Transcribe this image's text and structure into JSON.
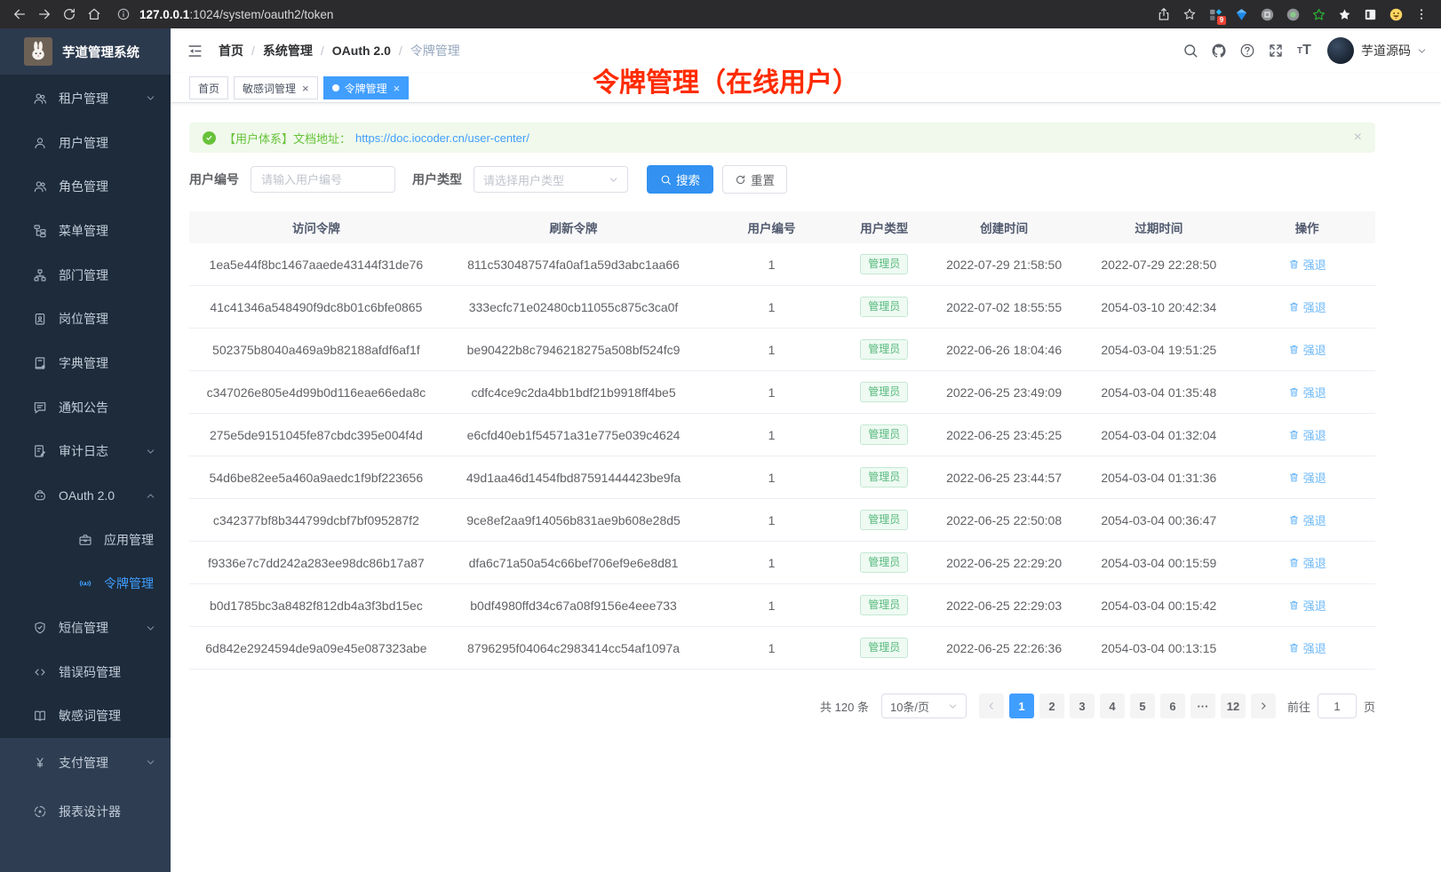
{
  "colors": {
    "accent": "#409eff",
    "success": "#67c23a",
    "annotation_red": "#ff2b00",
    "sidebar_bg": "#1d2b3a"
  },
  "browser": {
    "url_host": "127.0.0.1",
    "url_path": ":1024/system/oauth2/token",
    "extension_badge": "9"
  },
  "sidebar": {
    "app_title": "芋道管理系统",
    "items": [
      {
        "name": "tenant-management",
        "icon": "users-icon",
        "label": "租户管理",
        "chevron": "down"
      },
      {
        "name": "user-management",
        "icon": "user-icon",
        "label": "用户管理"
      },
      {
        "name": "role-management",
        "icon": "role-icon",
        "label": "角色管理"
      },
      {
        "name": "menu-management",
        "icon": "menu-tree-icon",
        "label": "菜单管理"
      },
      {
        "name": "dept-management",
        "icon": "org-icon",
        "label": "部门管理"
      },
      {
        "name": "post-management",
        "icon": "post-icon",
        "label": "岗位管理"
      },
      {
        "name": "dict-management",
        "icon": "dict-icon",
        "label": "字典管理"
      },
      {
        "name": "notice-management",
        "icon": "notice-icon",
        "label": "通知公告"
      },
      {
        "name": "audit-log",
        "icon": "audit-icon",
        "label": "审计日志",
        "chevron": "down"
      },
      {
        "name": "oauth2",
        "icon": "robot-icon",
        "label": "OAuth 2.0",
        "chevron": "up"
      },
      {
        "name": "oauth2-application",
        "icon": "briefcase-icon",
        "label": "应用管理",
        "sub": true
      },
      {
        "name": "oauth2-token",
        "icon": "token-icon",
        "label": "令牌管理",
        "sub": true,
        "active": true
      },
      {
        "name": "sms-management",
        "icon": "shield-icon",
        "label": "短信管理",
        "chevron": "down"
      },
      {
        "name": "error-code-management",
        "icon": "code-icon",
        "label": "错误码管理"
      },
      {
        "name": "sensitive-word-management",
        "icon": "book-icon",
        "label": "敏感词管理"
      },
      {
        "name": "pay-management",
        "icon": "yen-icon",
        "label": "支付管理",
        "chevron": "down",
        "section": 2
      },
      {
        "name": "report-designer",
        "icon": "report-icon",
        "label": "报表设计器",
        "section": 2
      }
    ]
  },
  "navbar": {
    "breadcrumb": [
      "首页",
      "系统管理",
      "OAuth 2.0",
      "令牌管理"
    ],
    "user_name": "芋道源码"
  },
  "tabs": [
    {
      "name": "home",
      "label": "首页",
      "closable": false,
      "active": false
    },
    {
      "name": "sensitive-word",
      "label": "敏感词管理",
      "closable": true,
      "active": false
    },
    {
      "name": "oauth2-token",
      "label": "令牌管理",
      "closable": true,
      "active": true
    }
  ],
  "annotation": "令牌管理（在线用户）",
  "alert": {
    "text": "【用户体系】文档地址：",
    "link": "https://doc.iocoder.cn/user-center/"
  },
  "filters": {
    "user_id_label": "用户编号",
    "user_id_placeholder": "请输入用户编号",
    "user_type_label": "用户类型",
    "user_type_placeholder": "请选择用户类型",
    "search_label": "搜索",
    "reset_label": "重置"
  },
  "table": {
    "columns": [
      "访问令牌",
      "刷新令牌",
      "用户编号",
      "用户类型",
      "创建时间",
      "过期时间",
      "操作"
    ],
    "action_label": "强退",
    "rows": [
      {
        "access": "1ea5e44f8bc1467aaede43144f31de76",
        "refresh": "811c530487574fa0af1a59d3abc1aa66",
        "user_id": "1",
        "user_type": "管理员",
        "created": "2022-07-29 21:58:50",
        "expires": "2022-07-29 22:28:50"
      },
      {
        "access": "41c41346a548490f9dc8b01c6bfe0865",
        "refresh": "333ecfc71e02480cb11055c875c3ca0f",
        "user_id": "1",
        "user_type": "管理员",
        "created": "2022-07-02 18:55:55",
        "expires": "2054-03-10 20:42:34"
      },
      {
        "access": "502375b8040a469a9b82188afdf6af1f",
        "refresh": "be90422b8c7946218275a508bf524fc9",
        "user_id": "1",
        "user_type": "管理员",
        "created": "2022-06-26 18:04:46",
        "expires": "2054-03-04 19:51:25"
      },
      {
        "access": "c347026e805e4d99b0d116eae66eda8c",
        "refresh": "cdfc4ce9c2da4bb1bdf21b9918ff4be5",
        "user_id": "1",
        "user_type": "管理员",
        "created": "2022-06-25 23:49:09",
        "expires": "2054-03-04 01:35:48"
      },
      {
        "access": "275e5de9151045fe87cbdc395e004f4d",
        "refresh": "e6cfd40eb1f54571a31e775e039c4624",
        "user_id": "1",
        "user_type": "管理员",
        "created": "2022-06-25 23:45:25",
        "expires": "2054-03-04 01:32:04"
      },
      {
        "access": "54d6be82ee5a460a9aedc1f9bf223656",
        "refresh": "49d1aa46d1454fbd87591444423be9fa",
        "user_id": "1",
        "user_type": "管理员",
        "created": "2022-06-25 23:44:57",
        "expires": "2054-03-04 01:31:36"
      },
      {
        "access": "c342377bf8b344799dcbf7bf095287f2",
        "refresh": "9ce8ef2aa9f14056b831ae9b608e28d5",
        "user_id": "1",
        "user_type": "管理员",
        "created": "2022-06-25 22:50:08",
        "expires": "2054-03-04 00:36:47"
      },
      {
        "access": "f9336e7c7dd242a283ee98dc86b17a87",
        "refresh": "dfa6c71a50a54c66bef706ef9e6e8d81",
        "user_id": "1",
        "user_type": "管理员",
        "created": "2022-06-25 22:29:20",
        "expires": "2054-03-04 00:15:59"
      },
      {
        "access": "b0d1785bc3a8482f812db4a3f3bd15ec",
        "refresh": "b0df4980ffd34c67a08f9156e4eee733",
        "user_id": "1",
        "user_type": "管理员",
        "created": "2022-06-25 22:29:03",
        "expires": "2054-03-04 00:15:42"
      },
      {
        "access": "6d842e2924594de9a09e45e087323abe",
        "refresh": "8796295f04064c2983414cc54af1097a",
        "user_id": "1",
        "user_type": "管理员",
        "created": "2022-06-25 22:26:36",
        "expires": "2054-03-04 00:13:15"
      }
    ]
  },
  "pagination": {
    "total_text": "共 120 条",
    "page_size": "10条/页",
    "pages": [
      "1",
      "2",
      "3",
      "4",
      "5",
      "6",
      "···",
      "12"
    ],
    "active_page": "1",
    "goto_label": "前往",
    "goto_value": "1",
    "unit_label": "页"
  }
}
